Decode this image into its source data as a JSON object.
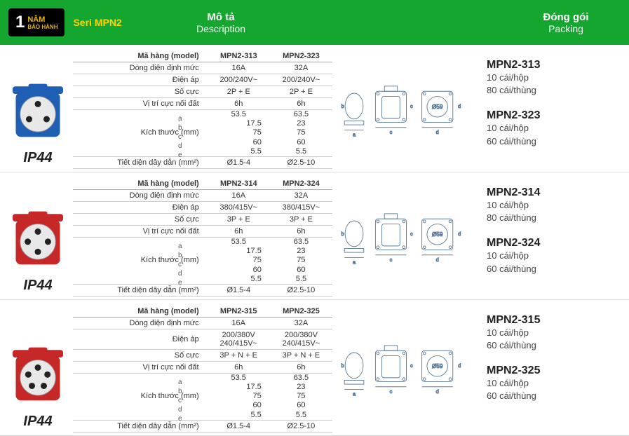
{
  "header": {
    "warranty_num": "1",
    "warranty_text": "NĂM",
    "warranty_sub": "BẢO HÀNH",
    "seri": "Seri MPN2",
    "desc_vi": "Mô tả",
    "desc_en": "Description",
    "pack_vi": "Đóng gói",
    "pack_en": "Packing"
  },
  "labels": {
    "model": "Mã hàng (model)",
    "current": "Dòng điện định mức",
    "voltage": "Điện áp",
    "poles": "Số cực",
    "earth": "Vị trí cực nối đất",
    "dims": "Kích thước (mm)",
    "wire": "Tiết diện dây dẫn (mm²)",
    "a": "a",
    "b": "b",
    "c": "c",
    "d": "d",
    "e": "e",
    "d59": "Ø59"
  },
  "sections": [
    {
      "ip": "IP44",
      "color": "#1e5fb4",
      "models": [
        "MPN2-313",
        "MPN2-323"
      ],
      "current": [
        "16A",
        "32A"
      ],
      "voltage": [
        "200/240V~",
        "200/240V~"
      ],
      "poles": [
        "2P + E",
        "2P + E"
      ],
      "earth": [
        "6h",
        "6h"
      ],
      "a": [
        "53.5",
        "63.5"
      ],
      "b": [
        "17.5",
        "23"
      ],
      "c": [
        "75",
        "75"
      ],
      "d": [
        "60",
        "60"
      ],
      "e": [
        "5.5",
        "5.5"
      ],
      "wire": [
        "Ø1.5-4",
        "Ø2.5-10"
      ],
      "packing": [
        {
          "model": "MPN2-313",
          "l1": "10 cái/hộp",
          "l2": "80 cái/thùng"
        },
        {
          "model": "MPN2-323",
          "l1": "10 cái/hộp",
          "l2": "60 cái/thùng"
        }
      ]
    },
    {
      "ip": "IP44",
      "color": "#c62828",
      "models": [
        "MPN2-314",
        "MPN2-324"
      ],
      "current": [
        "16A",
        "32A"
      ],
      "voltage": [
        "380/415V~",
        "380/415V~"
      ],
      "poles": [
        "3P + E",
        "3P + E"
      ],
      "earth": [
        "6h",
        "6h"
      ],
      "a": [
        "53.5",
        "63.5"
      ],
      "b": [
        "17.5",
        "23"
      ],
      "c": [
        "75",
        "75"
      ],
      "d": [
        "60",
        "60"
      ],
      "e": [
        "5.5",
        "5.5"
      ],
      "wire": [
        "Ø1.5-4",
        "Ø2.5-10"
      ],
      "packing": [
        {
          "model": "MPN2-314",
          "l1": "10 cái/hộp",
          "l2": "80 cái/thùng"
        },
        {
          "model": "MPN2-324",
          "l1": "10 cái/hộp",
          "l2": "60 cái/thùng"
        }
      ]
    },
    {
      "ip": "IP44",
      "color": "#c62828",
      "models": [
        "MPN2-315",
        "MPN2-325"
      ],
      "current": [
        "16A",
        "32A"
      ],
      "voltage": [
        "200/380V\n240/415V~",
        "200/380V\n240/415V~"
      ],
      "poles": [
        "3P + N + E",
        "3P + N + E"
      ],
      "earth": [
        "6h",
        "6h"
      ],
      "a": [
        "53.5",
        "63.5"
      ],
      "b": [
        "17.5",
        "23"
      ],
      "c": [
        "75",
        "75"
      ],
      "d": [
        "60",
        "60"
      ],
      "e": [
        "5.5",
        "5.5"
      ],
      "wire": [
        "Ø1.5-4",
        "Ø2.5-10"
      ],
      "packing": [
        {
          "model": "MPN2-315",
          "l1": "10 cái/hộp",
          "l2": "60 cái/thùng"
        },
        {
          "model": "MPN2-325",
          "l1": "10 cái/hộp",
          "l2": "60 cái/thùng"
        }
      ]
    }
  ]
}
